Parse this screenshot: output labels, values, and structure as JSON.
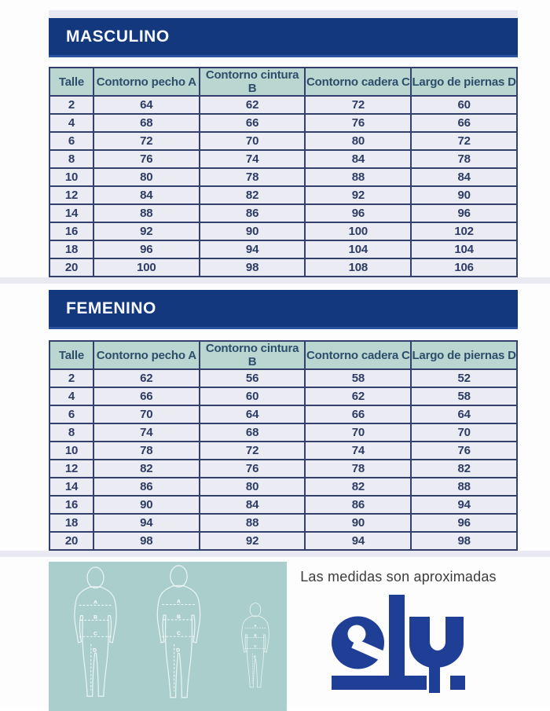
{
  "page": {
    "background": "#ffffff"
  },
  "colors": {
    "banner_navy": "#14387e",
    "banner_accent": "#2a52a0",
    "header_seafoam": "#b9d6d1",
    "header_text": "#2c4e6b",
    "cell_bg": "#ebebf3",
    "cell_text": "#2d3c64",
    "table_border": "#33406b",
    "divider_strip": "#e9e9f1",
    "diagram_teal": "#a9cecb",
    "figure_outline": "#ffffff",
    "logo_blue": "#1f3e96",
    "disclaimer_text": "#3c3c3c"
  },
  "sections": [
    {
      "id": "masculino",
      "title": "MASCULINO",
      "columns": [
        "Talle",
        "Contorno pecho A",
        "Contorno cintura B",
        "Contorno cadera C",
        "Largo de piernas D"
      ],
      "rows": [
        [
          2,
          64,
          62,
          72,
          60
        ],
        [
          4,
          68,
          66,
          76,
          66
        ],
        [
          6,
          72,
          70,
          80,
          72
        ],
        [
          8,
          76,
          74,
          84,
          78
        ],
        [
          10,
          80,
          78,
          88,
          84
        ],
        [
          12,
          84,
          82,
          92,
          90
        ],
        [
          14,
          88,
          86,
          96,
          96
        ],
        [
          16,
          92,
          90,
          100,
          102
        ],
        [
          18,
          96,
          94,
          104,
          104
        ],
        [
          20,
          100,
          98,
          108,
          106
        ]
      ]
    },
    {
      "id": "femenino",
      "title": "FEMENINO",
      "columns": [
        "Talle",
        "Contorno pecho A",
        "Contorno cintura B",
        "Contorno cadera C",
        "Largo de piernas D"
      ],
      "rows": [
        [
          2,
          62,
          56,
          58,
          52
        ],
        [
          4,
          66,
          60,
          62,
          58
        ],
        [
          6,
          70,
          64,
          66,
          64
        ],
        [
          8,
          74,
          68,
          70,
          70
        ],
        [
          10,
          78,
          72,
          74,
          76
        ],
        [
          12,
          82,
          76,
          78,
          82
        ],
        [
          14,
          86,
          80,
          82,
          88
        ],
        [
          16,
          90,
          84,
          86,
          94
        ],
        [
          18,
          94,
          88,
          90,
          96
        ],
        [
          20,
          98,
          92,
          94,
          98
        ]
      ]
    }
  ],
  "chart_data": [
    {
      "type": "table",
      "title": "MASCULINO",
      "columns": [
        "Talle",
        "Contorno pecho A",
        "Contorno cintura B",
        "Contorno cadera C",
        "Largo de piernas D"
      ],
      "rows": [
        [
          2,
          64,
          62,
          72,
          60
        ],
        [
          4,
          68,
          66,
          76,
          66
        ],
        [
          6,
          72,
          70,
          80,
          72
        ],
        [
          8,
          76,
          74,
          84,
          78
        ],
        [
          10,
          80,
          78,
          88,
          84
        ],
        [
          12,
          84,
          82,
          92,
          90
        ],
        [
          14,
          88,
          86,
          96,
          96
        ],
        [
          16,
          92,
          90,
          100,
          102
        ],
        [
          18,
          96,
          94,
          104,
          104
        ],
        [
          20,
          100,
          98,
          108,
          106
        ]
      ]
    },
    {
      "type": "table",
      "title": "FEMENINO",
      "columns": [
        "Talle",
        "Contorno pecho A",
        "Contorno cintura B",
        "Contorno cadera C",
        "Largo de piernas D"
      ],
      "rows": [
        [
          2,
          62,
          56,
          58,
          52
        ],
        [
          4,
          66,
          60,
          62,
          58
        ],
        [
          6,
          70,
          64,
          66,
          64
        ],
        [
          8,
          74,
          68,
          70,
          70
        ],
        [
          10,
          78,
          72,
          74,
          76
        ],
        [
          12,
          82,
          76,
          78,
          82
        ],
        [
          14,
          86,
          80,
          82,
          88
        ],
        [
          16,
          90,
          84,
          86,
          94
        ],
        [
          18,
          94,
          88,
          90,
          96
        ],
        [
          20,
          98,
          92,
          94,
          98
        ]
      ]
    }
  ],
  "footer": {
    "note": "Las medidas son aproximadas",
    "logo_text": "ely",
    "figure_labels": [
      "A",
      "B",
      "C",
      "D"
    ]
  }
}
